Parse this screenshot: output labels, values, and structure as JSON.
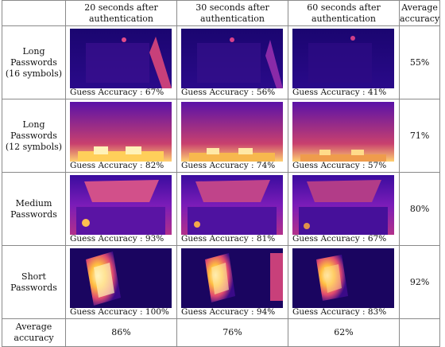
{
  "header": {
    "blank": "",
    "cols": [
      {
        "line1": "20 seconds after",
        "line2": "authentication"
      },
      {
        "line1": "30 seconds after",
        "line2": "authentication"
      },
      {
        "line1": "60 seconds after",
        "line2": "authentication"
      }
    ],
    "avg": {
      "line1": "Average",
      "line2": "accuracy"
    }
  },
  "rows": [
    {
      "label": [
        "Long",
        "Passwords",
        "(16 symbols)"
      ],
      "captions": [
        "Guess Accuracy : 67%",
        "Guess Accuracy : 56%",
        "Guess Accuracy : 41%"
      ],
      "avg": "55%",
      "thumb": "keyboard-dark"
    },
    {
      "label": [
        "Long",
        "Passwords",
        "(12 symbols)"
      ],
      "captions": [
        "Guess Accuracy : 82%",
        "Guess Accuracy : 74%",
        "Guess Accuracy : 57%"
      ],
      "avg": "71%",
      "thumb": "keyboard-bright-bottom"
    },
    {
      "label": [
        "Medium",
        "Passwords"
      ],
      "captions": [
        "Guess Accuracy : 93%",
        "Guess Accuracy : 81%",
        "Guess Accuracy : 67%"
      ],
      "avg": "80%",
      "thumb": "laptop-open"
    },
    {
      "label": [
        "Short",
        "Passwords"
      ],
      "captions": [
        "Guess Accuracy : 100%",
        "Guess Accuracy : 94%",
        "Guess Accuracy : 83%"
      ],
      "avg": "92%",
      "thumb": "hand-hot"
    }
  ],
  "footer": {
    "label": [
      "Average",
      "accuracy"
    ],
    "values": [
      "86%",
      "76%",
      "62%"
    ]
  },
  "colors": {
    "cold": "#12005a",
    "mid": "#8a1fb0",
    "warm": "#e04a70",
    "hot": "#ffcf5a",
    "white": "#fff6c8"
  }
}
